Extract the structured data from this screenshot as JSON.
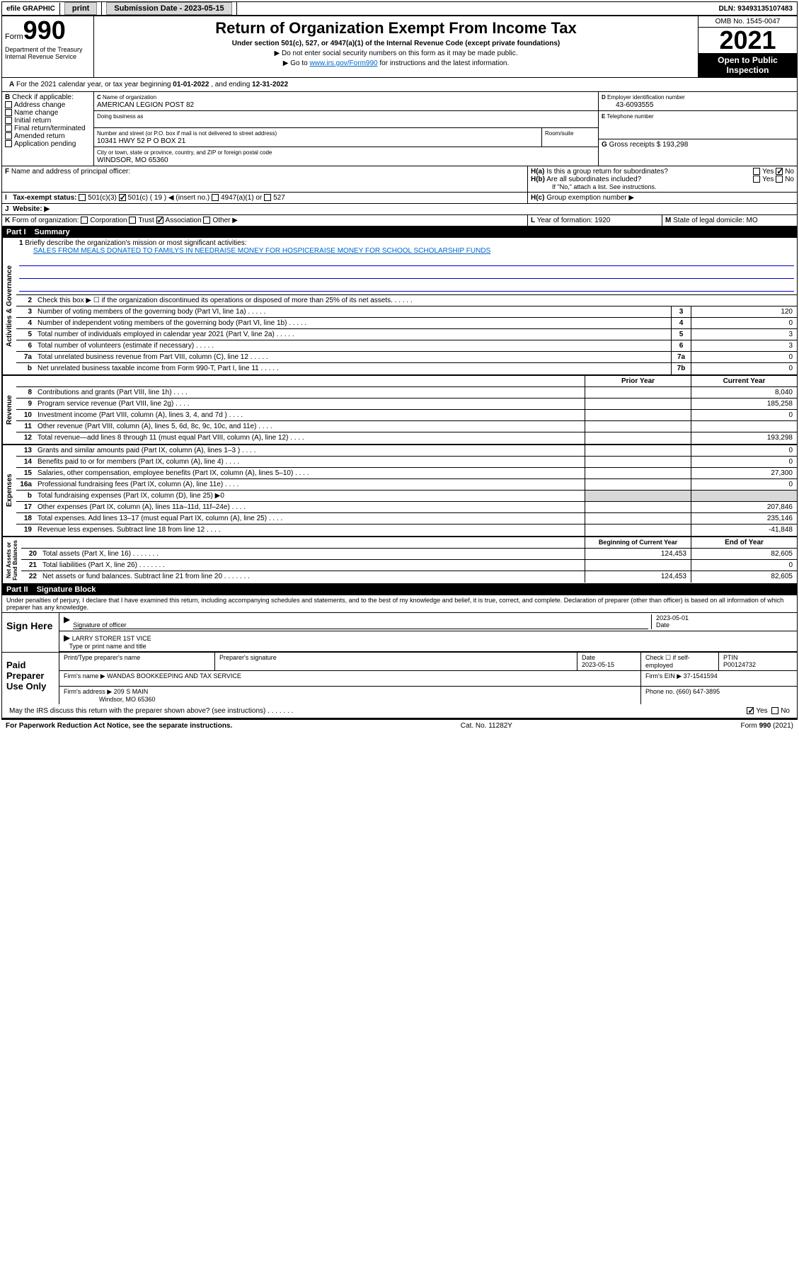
{
  "topbar": {
    "efile": "efile GRAPHIC",
    "print": "print",
    "sub_label": "Submission Date - 2023-05-15",
    "dln": "DLN: 93493135107483"
  },
  "header": {
    "form_word": "Form",
    "form_num": "990",
    "title": "Return of Organization Exempt From Income Tax",
    "subtitle": "Under section 501(c), 527, or 4947(a)(1) of the Internal Revenue Code (except private foundations)",
    "note1": "▶ Do not enter social security numbers on this form as it may be made public.",
    "note2_pre": "▶ Go to ",
    "note2_link": "www.irs.gov/Form990",
    "note2_post": " for instructions and the latest information.",
    "dept": "Department of the Treasury\nInternal Revenue Service",
    "omb": "OMB No. 1545-0047",
    "year": "2021",
    "open": "Open to Public Inspection"
  },
  "periodA": {
    "text_pre": "For the 2021 calendar year, or tax year beginning ",
    "begin": "01-01-2022",
    "mid": " , and ending ",
    "end": "12-31-2022"
  },
  "B": {
    "label": "Check if applicable:",
    "items": [
      "Address change",
      "Name change",
      "Initial return",
      "Final return/terminated",
      "Amended return",
      "Application pending"
    ]
  },
  "C": {
    "name_label": "Name of organization",
    "name": "AMERICAN LEGION POST 82",
    "dba_label": "Doing business as",
    "addr_label": "Number and street (or P.O. box if mail is not delivered to street address)",
    "room_label": "Room/suite",
    "addr": "10341 HWY 52 P O BOX 21",
    "city_label": "City or town, state or province, country, and ZIP or foreign postal code",
    "city": "WINDSOR, MO  65360"
  },
  "D": {
    "label": "Employer identification number",
    "val": "43-6093555"
  },
  "E": {
    "label": "Telephone number"
  },
  "G": {
    "label": "Gross receipts $",
    "val": "193,298"
  },
  "F": {
    "label": "Name and address of principal officer:"
  },
  "H": {
    "a": "Is this a group return for subordinates?",
    "b": "Are all subordinates included?",
    "b_note": "If \"No,\" attach a list. See instructions.",
    "c": "Group exemption number ▶"
  },
  "I": {
    "label": "Tax-exempt status:",
    "opts": [
      "501(c)(3)",
      "501(c) ( 19 ) ◀ (insert no.)",
      "4947(a)(1) or",
      "527"
    ]
  },
  "J": {
    "label": "Website: ▶"
  },
  "K": {
    "label": "Form of organization:",
    "opts": [
      "Corporation",
      "Trust",
      "Association",
      "Other ▶"
    ]
  },
  "L": {
    "label": "Year of formation:",
    "val": "1920"
  },
  "M": {
    "label": "State of legal domicile:",
    "val": "MO"
  },
  "part1": {
    "num": "Part I",
    "title": "Summary"
  },
  "mission": {
    "q": "Briefly describe the organization's mission or most significant activities:",
    "text": "SALES FROM MEALS DONATED TO FAMILYS IN NEEDRAISE MONEY FOR HOSPICERAISE MONEY FOR SCHOOL SCHOLARSHIP FUNDS"
  },
  "gov_lines": [
    {
      "n": "2",
      "t": "Check this box ▶ ☐  if the organization discontinued its operations or disposed of more than 25% of its net assets."
    },
    {
      "n": "3",
      "t": "Number of voting members of the governing body (Part VI, line 1a)",
      "box": "3",
      "v": "120"
    },
    {
      "n": "4",
      "t": "Number of independent voting members of the governing body (Part VI, line 1b)",
      "box": "4",
      "v": "0"
    },
    {
      "n": "5",
      "t": "Total number of individuals employed in calendar year 2021 (Part V, line 2a)",
      "box": "5",
      "v": "3"
    },
    {
      "n": "6",
      "t": "Total number of volunteers (estimate if necessary)",
      "box": "6",
      "v": "3"
    },
    {
      "n": "7a",
      "t": "Total unrelated business revenue from Part VIII, column (C), line 12",
      "box": "7a",
      "v": "0"
    },
    {
      "n": "b",
      "t": "Net unrelated business taxable income from Form 990-T, Part I, line 11",
      "box": "7b",
      "v": "0"
    }
  ],
  "col_hdrs": {
    "prior": "Prior Year",
    "current": "Current Year"
  },
  "rev_lines": [
    {
      "n": "8",
      "t": "Contributions and grants (Part VIII, line 1h)",
      "p": "",
      "c": "8,040"
    },
    {
      "n": "9",
      "t": "Program service revenue (Part VIII, line 2g)",
      "p": "",
      "c": "185,258"
    },
    {
      "n": "10",
      "t": "Investment income (Part VIII, column (A), lines 3, 4, and 7d )",
      "p": "",
      "c": "0"
    },
    {
      "n": "11",
      "t": "Other revenue (Part VIII, column (A), lines 5, 6d, 8c, 9c, 10c, and 11e)",
      "p": "",
      "c": ""
    },
    {
      "n": "12",
      "t": "Total revenue—add lines 8 through 11 (must equal Part VIII, column (A), line 12)",
      "p": "",
      "c": "193,298"
    }
  ],
  "exp_lines": [
    {
      "n": "13",
      "t": "Grants and similar amounts paid (Part IX, column (A), lines 1–3 )",
      "p": "",
      "c": "0"
    },
    {
      "n": "14",
      "t": "Benefits paid to or for members (Part IX, column (A), line 4)",
      "p": "",
      "c": "0"
    },
    {
      "n": "15",
      "t": "Salaries, other compensation, employee benefits (Part IX, column (A), lines 5–10)",
      "p": "",
      "c": "27,300"
    },
    {
      "n": "16a",
      "t": "Professional fundraising fees (Part IX, column (A), line 11e)",
      "p": "",
      "c": "0"
    },
    {
      "n": "b",
      "t": "Total fundraising expenses (Part IX, column (D), line 25) ▶0",
      "gray": true
    },
    {
      "n": "17",
      "t": "Other expenses (Part IX, column (A), lines 11a–11d, 11f–24e)",
      "p": "",
      "c": "207,846"
    },
    {
      "n": "18",
      "t": "Total expenses. Add lines 13–17 (must equal Part IX, column (A), line 25)",
      "p": "",
      "c": "235,146"
    },
    {
      "n": "19",
      "t": "Revenue less expenses. Subtract line 18 from line 12",
      "p": "",
      "c": "-41,848"
    }
  ],
  "net_hdrs": {
    "begin": "Beginning of Current Year",
    "end": "End of Year"
  },
  "net_lines": [
    {
      "n": "20",
      "t": "Total assets (Part X, line 16)",
      "p": "124,453",
      "c": "82,605"
    },
    {
      "n": "21",
      "t": "Total liabilities (Part X, line 26)",
      "p": "",
      "c": "0"
    },
    {
      "n": "22",
      "t": "Net assets or fund balances. Subtract line 21 from line 20",
      "p": "124,453",
      "c": "82,605"
    }
  ],
  "part2": {
    "num": "Part II",
    "title": "Signature Block"
  },
  "sig_decl": "Under penalties of perjury, I declare that I have examined this return, including accompanying schedules and statements, and to the best of my knowledge and belief, it is true, correct, and complete. Declaration of preparer (other than officer) is based on all information of which preparer has any knowledge.",
  "sign": {
    "label": "Sign Here",
    "sig_label": "Signature of officer",
    "date": "2023-05-01",
    "date_label": "Date",
    "name": "LARRY STORER  1ST VICE",
    "name_label": "Type or print name and title"
  },
  "prep": {
    "label": "Paid Preparer Use Only",
    "name_label": "Print/Type preparer's name",
    "sig_label": "Preparer's signature",
    "date_label": "Date",
    "date": "2023-05-15",
    "check_label": "Check ☐ if self-employed",
    "ptin_label": "PTIN",
    "ptin": "P00124732",
    "firm_label": "Firm's name   ▶",
    "firm": "WANDAS BOOKKEEPING AND TAX SERVICE",
    "ein_label": "Firm's EIN ▶",
    "ein": "37-1541594",
    "addr_label": "Firm's address ▶",
    "addr1": "209 S MAIN",
    "addr2": "Windsor, MO  65360",
    "phone_label": "Phone no.",
    "phone": "(660) 647-3895"
  },
  "discuss": {
    "q": "May the IRS discuss this return with the preparer shown above? (see instructions)",
    "yes": "Yes",
    "no": "No"
  },
  "footer": {
    "pra": "For Paperwork Reduction Act Notice, see the separate instructions.",
    "cat": "Cat. No. 11282Y",
    "form": "Form 990 (2021)"
  },
  "colors": {
    "link": "#0066cc",
    "black": "#000000",
    "gray_btn": "#d8d8d8",
    "gray_fill": "#d8d8d8",
    "rule_blue": "#0000cc"
  }
}
